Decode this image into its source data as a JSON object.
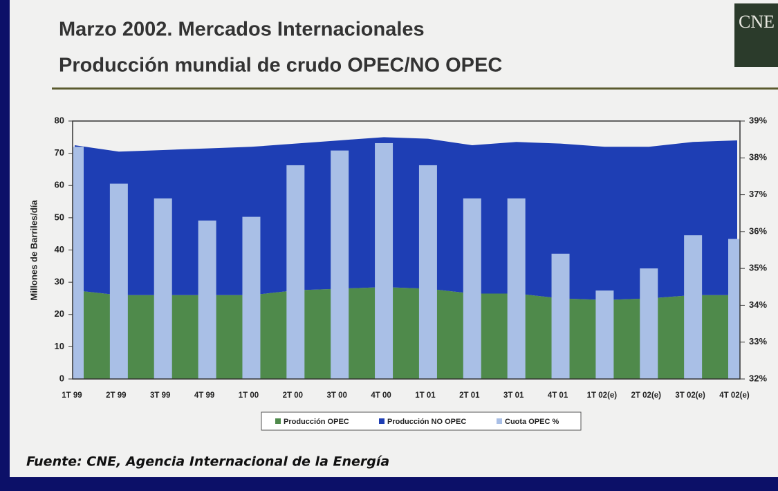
{
  "header": {
    "title": "Marzo 2002. Mercados Internacionales",
    "subtitle": "Producción mundial de crudo OPEC/NO OPEC",
    "logo": "CNE"
  },
  "footer": {
    "source": "Fuente: CNE, Agencia Internacional de la Energía"
  },
  "chart_data": {
    "type": "combo",
    "ylabel": "Millones de Barriles/día",
    "categories": [
      "1T 99",
      "2T 99",
      "3T 99",
      "4T 99",
      "1T 00",
      "2T 00",
      "3T 00",
      "4T 00",
      "1T 01",
      "2T 01",
      "3T 01",
      "4T 01",
      "1T 02(e)",
      "2T 02(e)",
      "3T 02(e)",
      "4T 02(e)"
    ],
    "series": [
      {
        "name": "Producción OPEC",
        "type": "area",
        "color": "#4f8a4b",
        "values": [
          27.5,
          26,
          26,
          26,
          26,
          27.5,
          28,
          28.5,
          28,
          26.5,
          26.5,
          25,
          24.5,
          25,
          26,
          26
        ]
      },
      {
        "name": "Producción NO OPEC",
        "type": "area",
        "color": "#1e3eb4",
        "values": [
          45,
          44.5,
          45,
          45.5,
          46,
          45.5,
          46,
          46.5,
          46.5,
          46,
          47,
          48,
          47.5,
          47,
          47.5,
          48
        ]
      },
      {
        "name": "Cuota OPEC %",
        "type": "bar",
        "axis": "y2",
        "color": "#a9bfe6",
        "values": [
          38.3,
          37.3,
          36.9,
          36.3,
          36.4,
          37.8,
          38.2,
          38.4,
          37.8,
          36.9,
          36.9,
          35.4,
          34.4,
          35.0,
          35.9,
          35.8
        ]
      }
    ],
    "stacked": true,
    "ylim": [
      0,
      80
    ],
    "yticks": [
      0,
      10,
      20,
      30,
      40,
      50,
      60,
      70,
      80
    ],
    "y2lim": [
      32,
      39
    ],
    "y2ticks": [
      {
        "value": 32,
        "label": "32%"
      },
      {
        "value": 33,
        "label": "33%"
      },
      {
        "value": 34,
        "label": "34%"
      },
      {
        "value": 35,
        "label": "35%"
      },
      {
        "value": 36,
        "label": "36%"
      },
      {
        "value": 37,
        "label": "37%"
      },
      {
        "value": 38,
        "label": "38%"
      },
      {
        "value": 39,
        "label": "39%"
      }
    ],
    "legend": "bottom"
  }
}
